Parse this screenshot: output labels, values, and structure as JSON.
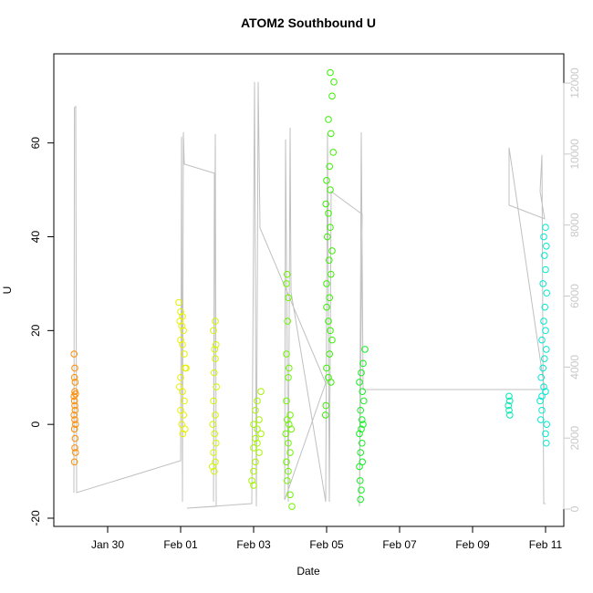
{
  "chart_data": {
    "type": "scatter",
    "title": "ATOM2 Southbound U",
    "xlabel": "Date",
    "ylabel": "U",
    "xlim": [
      28.525,
      42.5
    ],
    "ylim": [
      -21.75,
      79
    ],
    "y2lim": [
      -488,
      12823
    ],
    "xticks": [
      {
        "value": 30,
        "label": "Jan 30"
      },
      {
        "value": 32,
        "label": "Feb 01"
      },
      {
        "value": 34,
        "label": "Feb 03"
      },
      {
        "value": 36,
        "label": "Feb 05"
      },
      {
        "value": 38,
        "label": "Feb 07"
      },
      {
        "value": 40,
        "label": "Feb 09"
      },
      {
        "value": 42,
        "label": "Feb 11"
      }
    ],
    "yticks": [
      -20,
      0,
      20,
      40,
      60
    ],
    "y2ticks": [
      0,
      2000,
      4000,
      6000,
      8000,
      10000,
      12000
    ],
    "y2_color": "#c8c8c8",
    "series": [
      {
        "type": "line",
        "axis": "y2",
        "color": "#c0c0c0",
        "x": [
          29.075,
          29.09,
          29.125,
          29.15,
          32.0,
          32.025,
          32.05,
          32.075,
          32.1,
          32.925,
          32.9,
          32.95,
          32.975,
          32.175,
          33.95,
          34.025,
          34.075,
          34.125,
          34.175,
          35.975,
          34.85,
          34.875,
          34.95,
          35.0,
          35.025,
          35.975,
          36.025,
          36.075,
          36.125,
          36.975,
          36.9,
          36.95,
          37.0,
          41.975,
          41.0,
          41.0,
          41.975,
          41.85,
          41.9,
          41.95,
          42.0
        ],
        "values": [
          463,
          11311,
          11337,
          463,
          1362,
          10488,
          206,
          10617,
          9717,
          9460,
          206,
          10565,
          77,
          26,
          154,
          12031,
          77,
          12031,
          7918,
          3548,
          257,
          10411,
          206,
          10745,
          6118,
          206,
          10565,
          206,
          8946,
          8303,
          77,
          10617,
          3368,
          3368,
          10180,
          8560,
          8175,
          8946,
          9974,
          154,
          154
        ]
      },
      {
        "color": "#ff8c00",
        "x": [
          29.08,
          29.1,
          29.09,
          29.11,
          29.1,
          29.08,
          29.12,
          29.09,
          29.1,
          29.11,
          29.08,
          29.1,
          29.12,
          29.09,
          29.11,
          29.1,
          29.12,
          29.09
        ],
        "values": [
          15,
          12,
          10,
          9,
          7,
          6,
          6.5,
          5,
          4,
          3,
          2,
          1,
          0,
          -1,
          -3,
          -5,
          -6,
          -8
        ]
      },
      {
        "color": "#e8f000",
        "x": [
          31.95,
          32.0,
          32.05,
          31.98,
          32.03,
          32.08,
          32.0,
          32.05,
          32.1,
          32.12,
          32.15,
          32.0,
          31.97,
          32.05,
          32.1,
          32.0,
          32.08,
          32.03,
          32.12,
          32.06
        ],
        "values": [
          26,
          24,
          23,
          22,
          21,
          20,
          18,
          17,
          15,
          12,
          12,
          10,
          8,
          7,
          5,
          3,
          2,
          0,
          -1,
          -2
        ]
      },
      {
        "color": "#d4f500",
        "x": [
          32.95,
          32.9,
          32.97,
          32.93,
          32.95,
          32.92,
          32.98,
          32.9,
          32.95,
          32.88,
          32.93,
          32.97,
          32.9,
          32.95,
          32.87,
          32.92
        ],
        "values": [
          22,
          20,
          17,
          16,
          14,
          11,
          8,
          5,
          2,
          0,
          -2,
          -4,
          -6,
          -8,
          -9,
          -10
        ]
      },
      {
        "color": "#a6f500",
        "x": [
          34.2,
          34.1,
          34.05,
          34.15,
          34.0,
          34.1,
          34.2,
          34.05,
          34.1,
          34.0,
          34.15,
          34.05,
          34.0,
          33.95,
          34.0
        ],
        "values": [
          7,
          5,
          3,
          1,
          0,
          -1,
          -2,
          -3,
          -4,
          -5,
          -6,
          -8,
          -10,
          -12,
          -13
        ]
      },
      {
        "color": "#6ef500",
        "x": [
          34.92,
          34.9,
          34.95,
          34.93,
          34.9,
          34.97,
          34.95,
          34.9,
          35.0,
          34.92,
          34.97,
          35.03,
          34.88,
          34.95,
          35.0,
          34.9,
          34.95,
          34.92,
          35.0,
          35.05
        ],
        "values": [
          32,
          30,
          27,
          22,
          15,
          12,
          10,
          5,
          2,
          1,
          0,
          -1,
          -2,
          -4,
          -6,
          -8,
          -10,
          -12,
          -15,
          -17.5
        ]
      },
      {
        "color": "#38f000",
        "x": [
          36.1,
          36.2,
          36.15,
          36.05,
          36.12,
          36.18,
          36.08,
          36.0,
          36.1,
          35.98,
          36.05,
          36.1,
          36.02,
          36.15,
          36.07,
          36.12,
          36.0,
          36.08,
          36.0,
          36.05,
          36.1,
          36.15,
          36.08,
          36.0,
          36.05,
          36.12,
          35.98,
          35.97
        ],
        "values": [
          75,
          73,
          70,
          65,
          62,
          58,
          55,
          52,
          50,
          47,
          45,
          42,
          40,
          37,
          35,
          32,
          30,
          27,
          25,
          22,
          20,
          18,
          15,
          12,
          10,
          9,
          4,
          2
        ]
      },
      {
        "color": "#10f020",
        "x": [
          37.05,
          37.0,
          36.95,
          36.9,
          36.98,
          37.02,
          36.93,
          36.97,
          37.0,
          36.95,
          36.9,
          36.97,
          36.93,
          36.98,
          36.9,
          36.92,
          36.95,
          36.93
        ],
        "values": [
          16,
          13,
          11,
          9,
          7,
          5,
          3,
          1,
          0,
          -1,
          -2,
          -4,
          -6,
          -8,
          -9,
          -12,
          -14,
          -16
        ]
      },
      {
        "color": "#00e8b0",
        "x": [
          41.0,
          41.02,
          40.98,
          41.0,
          41.02
        ],
        "values": [
          6,
          5,
          4,
          3,
          2
        ]
      },
      {
        "color": "#00e8d0",
        "x": [
          42.0,
          41.95,
          42.02,
          41.97,
          42.0,
          41.93,
          42.03,
          41.98,
          41.95,
          42.0,
          41.9,
          42.02,
          41.97,
          41.93,
          41.88,
          41.95,
          42.0,
          41.9,
          41.85,
          41.9,
          41.87,
          42.03,
          42.0,
          42.02
        ],
        "values": [
          42,
          40,
          38,
          36,
          33,
          30,
          28,
          25,
          22,
          20,
          18,
          16,
          14,
          12,
          10,
          8,
          7,
          6,
          5,
          3,
          1,
          0,
          -2,
          -4
        ]
      }
    ]
  }
}
